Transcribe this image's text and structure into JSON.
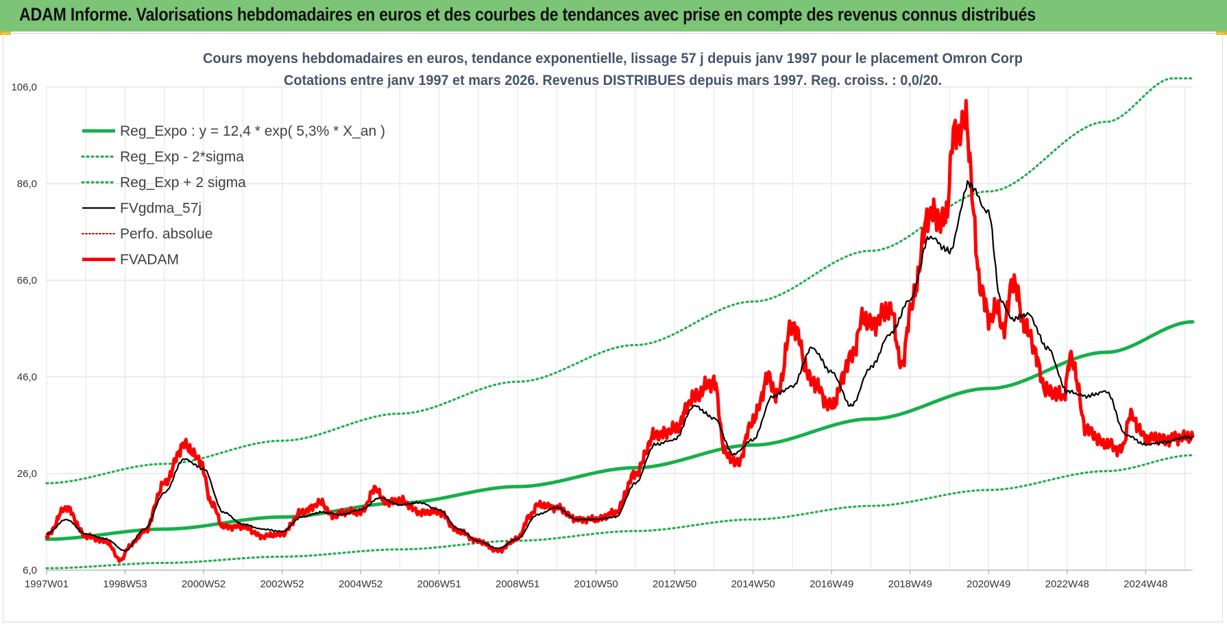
{
  "header": {
    "title": "ADAM Informe. Valorisations hebdomadaires en euros et des courbes de tendances avec prise en compte des revenus connus distribués"
  },
  "colors": {
    "banner": "#7cc576",
    "trend": "#16b04a",
    "band": "#22b04f",
    "smooth": "#000000",
    "price": "#ff0000",
    "perf": "#c00000"
  },
  "chart_data": {
    "type": "line",
    "title": "Cours moyens hebdomadaires en euros, tendance exponentielle, lissage 57 j depuis janv 1997  pour le placement Omron Corp",
    "subtitle": "Cotations entre janv 1997 et mars 2026. Revenus DISTRIBUES depuis mars 1997.  Reg. croiss. : 0,0/20.",
    "xlabel": "",
    "ylabel": "",
    "x_range": [
      1997.0,
      2026.2
    ],
    "ylim": [
      6,
      106
    ],
    "y_ticks": [
      "106,0",
      "86,0",
      "66,0",
      "46,0",
      "26,0",
      "6,0"
    ],
    "x_ticks": [
      {
        "label": "1997W01",
        "x": 1997.0
      },
      {
        "label": "1998W53",
        "x": 1999.0
      },
      {
        "label": "2000W52",
        "x": 2001.0
      },
      {
        "label": "2002W52",
        "x": 2003.0
      },
      {
        "label": "2004W52",
        "x": 2005.0
      },
      {
        "label": "2006W51",
        "x": 2007.0
      },
      {
        "label": "2008W51",
        "x": 2009.0
      },
      {
        "label": "2010W50",
        "x": 2011.0
      },
      {
        "label": "2012W50",
        "x": 2013.0
      },
      {
        "label": "2014W50",
        "x": 2015.0
      },
      {
        "label": "2016W49",
        "x": 2017.0
      },
      {
        "label": "2018W49",
        "x": 2019.0
      },
      {
        "label": "2020W49",
        "x": 2021.0
      },
      {
        "label": "2022W48",
        "x": 2023.0
      },
      {
        "label": "2024W48",
        "x": 2025.0
      }
    ],
    "grid": true,
    "legend_position": "top-left",
    "series": [
      {
        "name": "Reg_Expo : y = 12,4 * exp( 5,3% *  X_an )",
        "style": "solid-thick",
        "color": "#16b04a",
        "x": [
          1997.0,
          2000.0,
          2003.0,
          2006.0,
          2009.0,
          2012.0,
          2015.0,
          2018.0,
          2021.0,
          2024.0,
          2026.2
        ],
        "y": [
          12.4,
          14.5,
          17.0,
          19.9,
          23.3,
          27.2,
          31.9,
          37.3,
          43.6,
          51.1,
          57.4
        ]
      },
      {
        "name": "Reg_Exp - 2*sigma",
        "style": "dotted",
        "color": "#22b04f",
        "x": [
          1997.0,
          2000.0,
          2003.0,
          2006.0,
          2009.0,
          2012.0,
          2015.0,
          2018.0,
          2021.0,
          2024.0,
          2026.2
        ],
        "y": [
          6.4,
          7.5,
          8.8,
          10.3,
          12.1,
          14.1,
          16.5,
          19.3,
          22.6,
          26.5,
          29.8
        ]
      },
      {
        "name": "Reg_Exp + 2 sigma",
        "style": "dotted",
        "color": "#22b04f",
        "x": [
          1997.0,
          2000.0,
          2003.0,
          2006.0,
          2009.0,
          2012.0,
          2015.0,
          2018.0,
          2021.0,
          2024.0,
          2025.7,
          2026.2
        ],
        "y": [
          24.0,
          28.0,
          32.8,
          38.4,
          45.0,
          52.6,
          61.6,
          72.1,
          84.4,
          98.8,
          107.8,
          107.8
        ]
      },
      {
        "name": "FVgdma_57j",
        "style": "solid-thin",
        "color": "#000000",
        "x": [
          1997.0,
          1997.5,
          1998.0,
          1998.5,
          1999.0,
          1999.5,
          2000.0,
          2000.5,
          2001.0,
          2001.5,
          2002.0,
          2002.5,
          2003.0,
          2003.5,
          2004.0,
          2004.5,
          2005.0,
          2005.5,
          2006.0,
          2006.5,
          2007.0,
          2007.5,
          2008.0,
          2008.5,
          2009.0,
          2009.5,
          2010.0,
          2010.5,
          2011.0,
          2011.5,
          2012.0,
          2012.5,
          2013.0,
          2013.5,
          2014.0,
          2014.5,
          2015.0,
          2015.5,
          2016.0,
          2016.5,
          2017.0,
          2017.5,
          2018.0,
          2018.5,
          2019.0,
          2019.5,
          2020.0,
          2020.5,
          2021.0,
          2021.3,
          2021.6,
          2022.0,
          2022.5,
          2023.0,
          2023.5,
          2024.0,
          2024.5,
          2025.0,
          2025.5,
          2026.0,
          2026.2
        ],
        "y": [
          13.5,
          16.5,
          13.5,
          12.5,
          10.0,
          14.5,
          22.0,
          29.0,
          27.0,
          18.0,
          15.5,
          14.5,
          14.0,
          17.0,
          18.0,
          17.5,
          18.5,
          21.0,
          19.5,
          20.0,
          18.5,
          14.5,
          12.0,
          10.5,
          12.5,
          17.5,
          19.0,
          16.5,
          16.5,
          17.0,
          24.0,
          32.0,
          33.0,
          40.0,
          37.5,
          30.0,
          33.0,
          42.0,
          44.0,
          52.0,
          47.0,
          40.0,
          48.0,
          55.0,
          62.0,
          75.0,
          72.0,
          86.0,
          80.0,
          62.0,
          58.0,
          59.0,
          52.0,
          43.0,
          42.0,
          43.0,
          34.0,
          32.0,
          32.5,
          33.5,
          33.5
        ]
      },
      {
        "name": "Perfo. absolue",
        "style": "dotted-thin",
        "color": "#c00000",
        "x": [],
        "y": []
      },
      {
        "name": "FVADAM",
        "style": "solid-thick",
        "color": "#ff0000",
        "x": [
          1997.0,
          1997.5,
          1998.0,
          1998.5,
          1998.9,
          1999.1,
          1999.5,
          2000.0,
          2000.5,
          2000.9,
          2001.2,
          2001.5,
          2002.0,
          2002.5,
          2003.0,
          2003.5,
          2004.0,
          2004.3,
          2004.5,
          2005.0,
          2005.4,
          2005.6,
          2006.0,
          2006.5,
          2007.0,
          2007.5,
          2008.0,
          2008.5,
          2009.0,
          2009.3,
          2009.5,
          2010.0,
          2010.5,
          2011.0,
          2011.5,
          2012.0,
          2012.5,
          2013.0,
          2013.5,
          2014.0,
          2014.3,
          2014.6,
          2015.0,
          2015.4,
          2015.6,
          2016.0,
          2016.5,
          2017.0,
          2017.5,
          2017.8,
          2018.0,
          2018.5,
          2018.8,
          2019.0,
          2019.5,
          2019.9,
          2020.1,
          2020.4,
          2020.8,
          2021.0,
          2021.2,
          2021.4,
          2021.6,
          2022.0,
          2022.5,
          2022.9,
          2023.1,
          2023.5,
          2024.0,
          2024.4,
          2024.6,
          2025.0,
          2025.5,
          2025.8,
          2026.0,
          2026.1,
          2026.2
        ],
        "y": [
          13.0,
          19.0,
          13.0,
          12.0,
          8.0,
          11.0,
          14.0,
          24.0,
          32.0,
          29.0,
          20.0,
          15.0,
          15.0,
          13.0,
          13.5,
          18.0,
          20.0,
          17.0,
          18.0,
          18.0,
          23.0,
          20.0,
          20.5,
          18.0,
          18.0,
          14.0,
          12.0,
          10.0,
          12.5,
          17.0,
          19.5,
          19.0,
          16.5,
          16.5,
          18.0,
          26.0,
          34.0,
          35.0,
          42.0,
          45.0,
          30.0,
          28.0,
          37.0,
          46.0,
          42.0,
          57.0,
          45.0,
          40.0,
          50.0,
          58.0,
          57.0,
          60.0,
          48.0,
          60.0,
          80.0,
          78.0,
          96.0,
          99.0,
          65.0,
          58.0,
          60.0,
          56.0,
          66.0,
          55.0,
          43.0,
          42.0,
          50.0,
          35.0,
          32.0,
          31.0,
          38.0,
          33.5,
          33.0,
          33.5,
          33.5,
          33.5,
          33.5
        ]
      }
    ]
  }
}
